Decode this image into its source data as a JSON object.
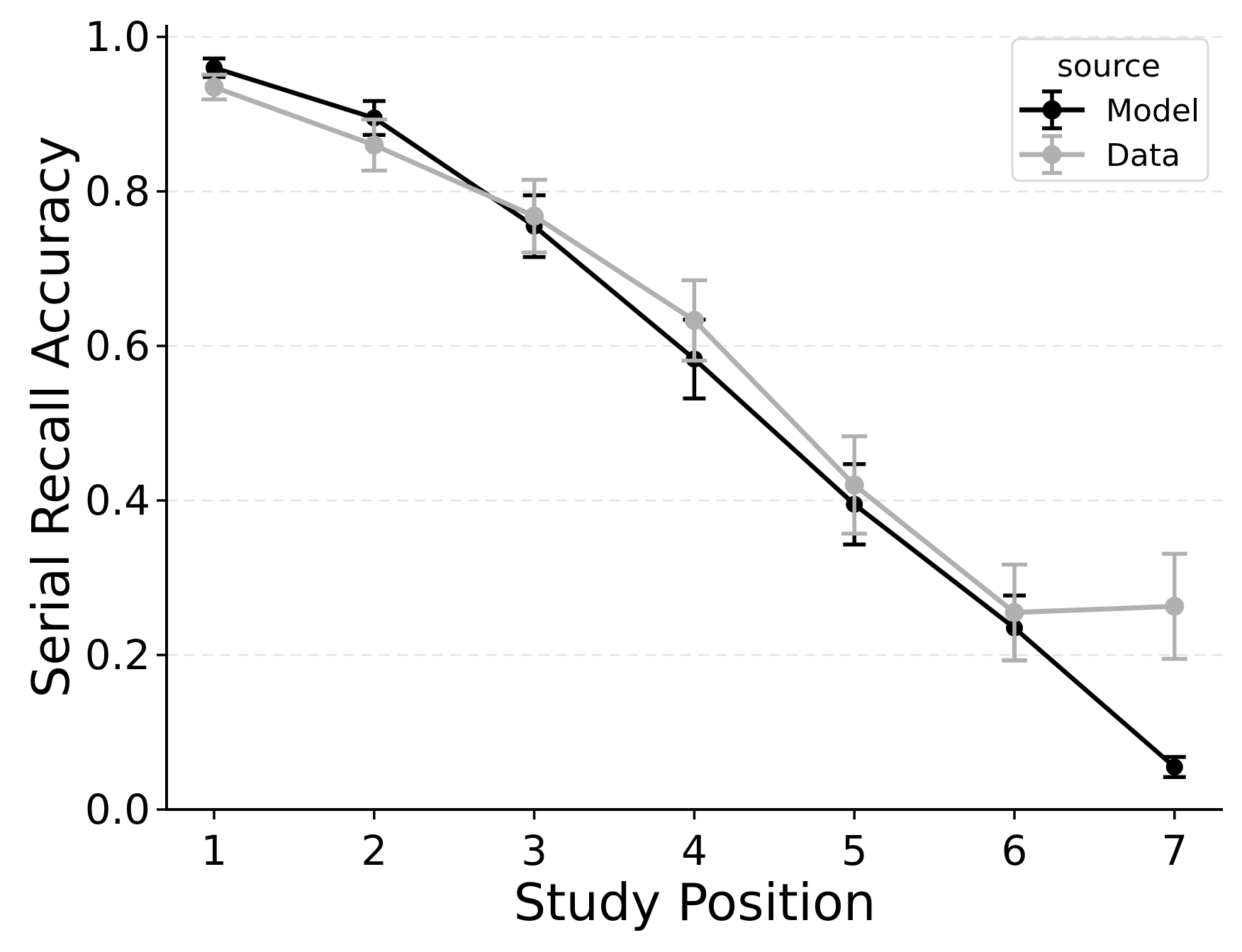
{
  "chart_data": {
    "type": "line",
    "title": "",
    "xlabel": "Study Position",
    "ylabel": "Serial Recall Accuracy",
    "x": [
      1,
      2,
      3,
      4,
      5,
      6,
      7
    ],
    "xtick_labels": [
      "1",
      "2",
      "3",
      "4",
      "5",
      "6",
      "7"
    ],
    "yticks": [
      0.0,
      0.2,
      0.4,
      0.6,
      0.8,
      1.0
    ],
    "ytick_labels": [
      "0.0",
      "0.2",
      "0.4",
      "0.6",
      "0.8",
      "1.0"
    ],
    "ylim": [
      0.0,
      1.0
    ],
    "grid": "horizontal-dashed",
    "legend": {
      "title": "source",
      "position": "upper-right",
      "entries": [
        "Model",
        "Data"
      ]
    },
    "series": [
      {
        "name": "Model",
        "color": "#000000",
        "marker": "circle",
        "values": [
          0.96,
          0.895,
          0.755,
          0.583,
          0.395,
          0.235,
          0.055
        ],
        "errors": [
          0.012,
          0.022,
          0.04,
          0.051,
          0.052,
          0.042,
          0.013
        ]
      },
      {
        "name": "Data",
        "color": "#b0b0b0",
        "marker": "circle",
        "values": [
          0.935,
          0.86,
          0.768,
          0.633,
          0.42,
          0.255,
          0.263
        ],
        "errors": [
          0.016,
          0.033,
          0.047,
          0.052,
          0.063,
          0.062,
          0.068
        ]
      }
    ],
    "colors": {
      "grid": "#e4e4e4",
      "axis": "#000000",
      "legend_border": "#d8d8d8",
      "background": "#ffffff"
    }
  }
}
